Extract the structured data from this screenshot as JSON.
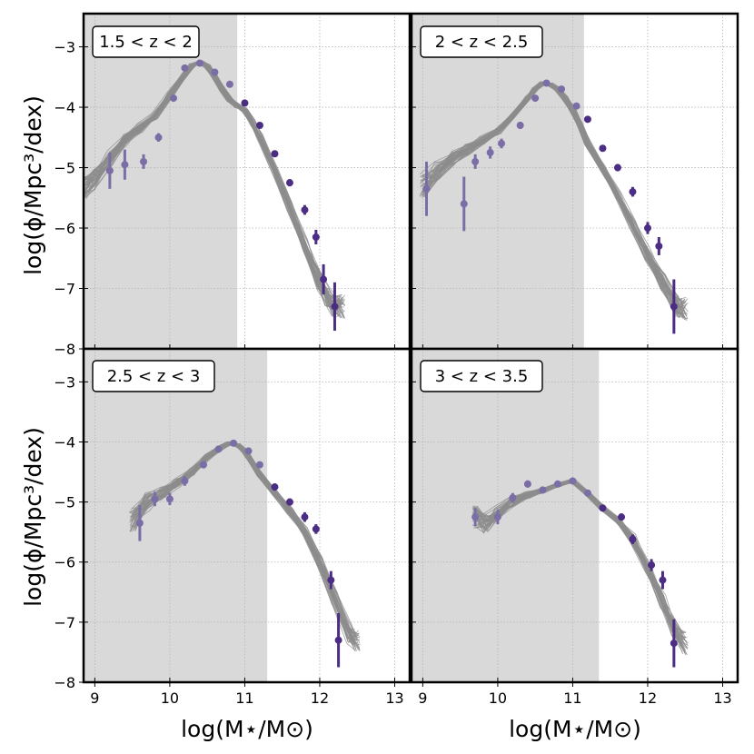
{
  "chart_data": {
    "type": "line",
    "xlabel": "log(M⋆/M⊙)",
    "ylabel": "log(ϕ/Mpc³/dex)",
    "xlim": [
      8.85,
      13.2
    ],
    "ylim": [
      -8,
      -2.45
    ],
    "xticks": [
      9,
      10,
      11,
      12,
      13
    ],
    "yticks": [
      -3,
      -4,
      -5,
      -6,
      -7,
      -8
    ],
    "grid": true,
    "colors": {
      "model_lines": "#8c8c8c",
      "points_faint": "#7b6ea6",
      "points_dark": "#4b2e83",
      "shade": "#d9d9d9",
      "grid": "#b5b5b5"
    },
    "panels": [
      {
        "label": "1.5 < z < 2",
        "shade_xmax": 10.9,
        "model_curve": {
          "x": [
            8.85,
            9.0,
            9.2,
            9.4,
            9.6,
            9.8,
            10.0,
            10.2,
            10.3,
            10.4,
            10.5,
            10.6,
            10.7,
            10.8,
            10.9,
            11.0,
            11.1,
            11.2,
            11.4,
            11.6,
            11.8,
            12.0,
            12.1,
            12.2,
            12.3
          ],
          "y": [
            -5.35,
            -5.2,
            -4.85,
            -4.55,
            -4.35,
            -4.15,
            -3.8,
            -3.45,
            -3.3,
            -3.25,
            -3.32,
            -3.5,
            -3.7,
            -3.88,
            -3.98,
            -4.05,
            -4.25,
            -4.5,
            -5.05,
            -5.65,
            -6.3,
            -6.9,
            -7.15,
            -7.3,
            -7.3
          ]
        },
        "points": [
          {
            "x": 9.2,
            "y": -5.05,
            "err": 0.3
          },
          {
            "x": 9.4,
            "y": -4.95,
            "err": 0.25
          },
          {
            "x": 9.65,
            "y": -4.9,
            "err": 0.12
          },
          {
            "x": 9.85,
            "y": -4.5,
            "err": 0.07
          },
          {
            "x": 10.05,
            "y": -3.85,
            "err": 0.05
          },
          {
            "x": 10.2,
            "y": -3.35,
            "err": 0.04
          },
          {
            "x": 10.4,
            "y": -3.27,
            "err": 0.04
          },
          {
            "x": 10.6,
            "y": -3.42,
            "err": 0.04
          },
          {
            "x": 10.8,
            "y": -3.62,
            "err": 0.04
          },
          {
            "x": 11.0,
            "y": -3.93,
            "err": 0.04
          },
          {
            "x": 11.2,
            "y": -4.3,
            "err": 0.04
          },
          {
            "x": 11.4,
            "y": -4.77,
            "err": 0.05
          },
          {
            "x": 11.6,
            "y": -5.25,
            "err": 0.06
          },
          {
            "x": 11.8,
            "y": -5.7,
            "err": 0.08
          },
          {
            "x": 11.95,
            "y": -6.15,
            "err": 0.12
          },
          {
            "x": 12.05,
            "y": -6.85,
            "err": 0.25
          },
          {
            "x": 12.2,
            "y": -7.3,
            "err": 0.4
          }
        ]
      },
      {
        "label": "2 < z < 2.5",
        "shade_xmax": 11.15,
        "model_curve": {
          "x": [
            9.0,
            9.2,
            9.4,
            9.6,
            9.8,
            10.0,
            10.2,
            10.4,
            10.5,
            10.6,
            10.7,
            10.8,
            10.9,
            11.0,
            11.1,
            11.2,
            11.4,
            11.6,
            11.8,
            12.0,
            12.2,
            12.4,
            12.5
          ],
          "y": [
            -5.3,
            -5.05,
            -4.85,
            -4.7,
            -4.55,
            -4.4,
            -4.15,
            -3.85,
            -3.7,
            -3.6,
            -3.62,
            -3.7,
            -3.85,
            -4.05,
            -4.3,
            -4.6,
            -5.0,
            -5.45,
            -5.95,
            -6.45,
            -6.9,
            -7.3,
            -7.35
          ]
        },
        "points": [
          {
            "x": 9.05,
            "y": -5.35,
            "err": 0.45
          },
          {
            "x": 9.55,
            "y": -5.6,
            "err": 0.45
          },
          {
            "x": 9.7,
            "y": -4.9,
            "err": 0.12
          },
          {
            "x": 9.9,
            "y": -4.75,
            "err": 0.1
          },
          {
            "x": 10.05,
            "y": -4.6,
            "err": 0.08
          },
          {
            "x": 10.3,
            "y": -4.3,
            "err": 0.06
          },
          {
            "x": 10.5,
            "y": -3.85,
            "err": 0.05
          },
          {
            "x": 10.65,
            "y": -3.6,
            "err": 0.05
          },
          {
            "x": 10.85,
            "y": -3.7,
            "err": 0.05
          },
          {
            "x": 11.05,
            "y": -3.98,
            "err": 0.05
          },
          {
            "x": 11.2,
            "y": -4.2,
            "err": 0.05
          },
          {
            "x": 11.4,
            "y": -4.68,
            "err": 0.05
          },
          {
            "x": 11.6,
            "y": -5.0,
            "err": 0.06
          },
          {
            "x": 11.8,
            "y": -5.4,
            "err": 0.08
          },
          {
            "x": 12.0,
            "y": -6.0,
            "err": 0.1
          },
          {
            "x": 12.15,
            "y": -6.3,
            "err": 0.15
          },
          {
            "x": 12.35,
            "y": -7.3,
            "err": 0.45
          }
        ]
      },
      {
        "label": "2.5 < z < 3",
        "shade_xmax": 11.3,
        "model_curve": {
          "x": [
            9.5,
            9.7,
            9.9,
            10.1,
            10.3,
            10.5,
            10.7,
            10.8,
            10.9,
            11.0,
            11.1,
            11.2,
            11.4,
            11.6,
            11.8,
            12.0,
            12.2,
            12.4,
            12.5
          ],
          "y": [
            -5.3,
            -5.0,
            -4.85,
            -4.7,
            -4.5,
            -4.25,
            -4.08,
            -4.02,
            -4.05,
            -4.15,
            -4.35,
            -4.55,
            -4.85,
            -5.15,
            -5.5,
            -6.0,
            -6.6,
            -7.2,
            -7.3
          ]
        },
        "points": [
          {
            "x": 9.6,
            "y": -5.35,
            "err": 0.3
          },
          {
            "x": 9.8,
            "y": -4.95,
            "err": 0.12
          },
          {
            "x": 10.0,
            "y": -4.95,
            "err": 0.1
          },
          {
            "x": 10.2,
            "y": -4.65,
            "err": 0.08
          },
          {
            "x": 10.45,
            "y": -4.38,
            "err": 0.06
          },
          {
            "x": 10.65,
            "y": -4.12,
            "err": 0.05
          },
          {
            "x": 10.85,
            "y": -4.02,
            "err": 0.05
          },
          {
            "x": 11.05,
            "y": -4.15,
            "err": 0.05
          },
          {
            "x": 11.2,
            "y": -4.38,
            "err": 0.05
          },
          {
            "x": 11.4,
            "y": -4.75,
            "err": 0.06
          },
          {
            "x": 11.6,
            "y": -5.0,
            "err": 0.06
          },
          {
            "x": 11.8,
            "y": -5.25,
            "err": 0.08
          },
          {
            "x": 11.95,
            "y": -5.45,
            "err": 0.08
          },
          {
            "x": 12.15,
            "y": -6.3,
            "err": 0.15
          },
          {
            "x": 12.25,
            "y": -7.3,
            "err": 0.45
          }
        ]
      },
      {
        "label": "3 < z < 3.5",
        "shade_xmax": 11.35,
        "model_curve": {
          "x": [
            9.7,
            9.85,
            10.0,
            10.2,
            10.4,
            10.6,
            10.8,
            11.0,
            11.2,
            11.4,
            11.6,
            11.8,
            12.0,
            12.2,
            12.35,
            12.5
          ],
          "y": [
            -5.25,
            -5.35,
            -5.2,
            -5.0,
            -4.88,
            -4.82,
            -4.72,
            -4.65,
            -4.85,
            -5.1,
            -5.3,
            -5.6,
            -6.1,
            -6.65,
            -7.1,
            -7.35
          ]
        },
        "points": [
          {
            "x": 9.7,
            "y": -5.25,
            "err": 0.15
          },
          {
            "x": 10.0,
            "y": -5.25,
            "err": 0.12
          },
          {
            "x": 10.2,
            "y": -4.93,
            "err": 0.08
          },
          {
            "x": 10.4,
            "y": -4.7,
            "err": 0.06
          },
          {
            "x": 10.6,
            "y": -4.8,
            "err": 0.05
          },
          {
            "x": 10.8,
            "y": -4.7,
            "err": 0.05
          },
          {
            "x": 11.0,
            "y": -4.65,
            "err": 0.05
          },
          {
            "x": 11.2,
            "y": -4.85,
            "err": 0.05
          },
          {
            "x": 11.4,
            "y": -5.1,
            "err": 0.05
          },
          {
            "x": 11.65,
            "y": -5.25,
            "err": 0.06
          },
          {
            "x": 11.8,
            "y": -5.62,
            "err": 0.08
          },
          {
            "x": 12.05,
            "y": -6.05,
            "err": 0.1
          },
          {
            "x": 12.2,
            "y": -6.3,
            "err": 0.15
          },
          {
            "x": 12.35,
            "y": -7.35,
            "err": 0.4
          }
        ]
      }
    ]
  }
}
